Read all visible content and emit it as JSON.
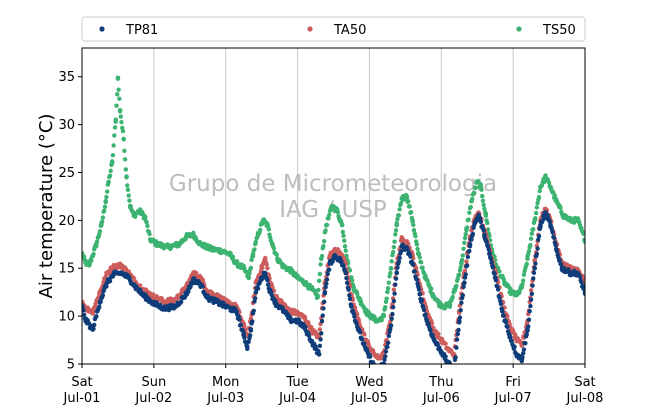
{
  "watermark": {
    "line1": "Grupo de Micrometeorologia",
    "line2": "IAG / USP"
  },
  "colors": {
    "TP81": "#0e3d7a",
    "TA50": "#cd5c5c",
    "TS50": "#3cb371",
    "grid": "#c8c8c8"
  },
  "chart_data": {
    "type": "scatter",
    "title": "",
    "ylabel": "Air temperature (°C)",
    "xlabel": "",
    "ylim": [
      5,
      38
    ],
    "yticks": [
      5,
      10,
      15,
      20,
      25,
      30,
      35
    ],
    "xlim_days": [
      0,
      7
    ],
    "xticks": [
      {
        "day": 0,
        "top": "Sat",
        "bottom": "Jul-01"
      },
      {
        "day": 1,
        "top": "Sun",
        "bottom": "Jul-02"
      },
      {
        "day": 2,
        "top": "Mon",
        "bottom": "Jul-03"
      },
      {
        "day": 3,
        "top": "Tue",
        "bottom": "Jul-04"
      },
      {
        "day": 4,
        "top": "Wed",
        "bottom": "Jul-05"
      },
      {
        "day": 5,
        "top": "Thu",
        "bottom": "Jul-06"
      },
      {
        "day": 6,
        "top": "Fri",
        "bottom": "Jul-07"
      },
      {
        "day": 7,
        "top": "Sat",
        "bottom": "Jul-08"
      }
    ],
    "grid": "vertical",
    "legend": "top",
    "series": [
      {
        "name": "TP81",
        "points": [
          [
            0.0,
            11.0
          ],
          [
            0.05,
            9.6
          ],
          [
            0.15,
            8.6
          ],
          [
            0.25,
            11.5
          ],
          [
            0.35,
            13.5
          ],
          [
            0.45,
            14.4
          ],
          [
            0.55,
            14.5
          ],
          [
            0.65,
            14.0
          ],
          [
            0.75,
            13.0
          ],
          [
            0.85,
            12.2
          ],
          [
            1.0,
            11.3
          ],
          [
            1.15,
            10.8
          ],
          [
            1.3,
            11.0
          ],
          [
            1.45,
            12.3
          ],
          [
            1.55,
            13.8
          ],
          [
            1.65,
            13.3
          ],
          [
            1.75,
            11.9
          ],
          [
            1.9,
            11.4
          ],
          [
            2.0,
            11.0
          ],
          [
            2.15,
            10.5
          ],
          [
            2.25,
            8.0
          ],
          [
            2.3,
            6.8
          ],
          [
            2.35,
            8.5
          ],
          [
            2.42,
            12.5
          ],
          [
            2.5,
            14.0
          ],
          [
            2.55,
            14.5
          ],
          [
            2.62,
            12.5
          ],
          [
            2.7,
            11.3
          ],
          [
            2.8,
            10.6
          ],
          [
            2.9,
            9.6
          ],
          [
            3.0,
            9.5
          ],
          [
            3.1,
            8.8
          ],
          [
            3.2,
            7.3
          ],
          [
            3.3,
            6.0
          ],
          [
            3.38,
            12.5
          ],
          [
            3.45,
            15.5
          ],
          [
            3.52,
            16.3
          ],
          [
            3.6,
            15.8
          ],
          [
            3.67,
            14.5
          ],
          [
            3.75,
            11.0
          ],
          [
            3.85,
            8.5
          ],
          [
            3.95,
            6.5
          ],
          [
            4.05,
            5.0
          ],
          [
            4.12,
            4.5
          ],
          [
            4.2,
            5.0
          ],
          [
            4.3,
            9.0
          ],
          [
            4.38,
            14.5
          ],
          [
            4.45,
            17.3
          ],
          [
            4.52,
            17.0
          ],
          [
            4.6,
            15.5
          ],
          [
            4.7,
            12.3
          ],
          [
            4.8,
            9.5
          ],
          [
            4.9,
            7.5
          ],
          [
            5.0,
            6.3
          ],
          [
            5.1,
            5.0
          ],
          [
            5.18,
            4.5
          ],
          [
            5.25,
            9.5
          ],
          [
            5.32,
            13.5
          ],
          [
            5.4,
            17.5
          ],
          [
            5.47,
            19.8
          ],
          [
            5.52,
            20.5
          ],
          [
            5.6,
            18.5
          ],
          [
            5.67,
            16.5
          ],
          [
            5.75,
            14.0
          ],
          [
            5.85,
            10.5
          ],
          [
            5.95,
            8.0
          ],
          [
            6.05,
            6.0
          ],
          [
            6.12,
            5.5
          ],
          [
            6.2,
            8.5
          ],
          [
            6.3,
            15.0
          ],
          [
            6.38,
            19.5
          ],
          [
            6.45,
            20.8
          ],
          [
            6.52,
            19.5
          ],
          [
            6.6,
            17.0
          ],
          [
            6.68,
            15.0
          ],
          [
            6.8,
            14.5
          ],
          [
            6.9,
            14.5
          ],
          [
            7.0,
            12.5
          ]
        ]
      },
      {
        "name": "TA50",
        "points": [
          [
            0.0,
            11.5
          ],
          [
            0.05,
            10.8
          ],
          [
            0.15,
            10.5
          ],
          [
            0.25,
            12.5
          ],
          [
            0.35,
            14.5
          ],
          [
            0.45,
            15.2
          ],
          [
            0.55,
            15.3
          ],
          [
            0.65,
            14.5
          ],
          [
            0.75,
            13.5
          ],
          [
            0.85,
            12.8
          ],
          [
            1.0,
            12.0
          ],
          [
            1.15,
            11.5
          ],
          [
            1.3,
            11.7
          ],
          [
            1.45,
            13.0
          ],
          [
            1.55,
            14.5
          ],
          [
            1.65,
            14.0
          ],
          [
            1.75,
            12.6
          ],
          [
            1.9,
            12.0
          ],
          [
            2.0,
            11.5
          ],
          [
            2.15,
            11.0
          ],
          [
            2.25,
            9.0
          ],
          [
            2.3,
            8.0
          ],
          [
            2.35,
            9.5
          ],
          [
            2.42,
            13.5
          ],
          [
            2.5,
            15.0
          ],
          [
            2.55,
            16.0
          ],
          [
            2.62,
            13.5
          ],
          [
            2.7,
            12.0
          ],
          [
            2.8,
            11.2
          ],
          [
            2.9,
            10.5
          ],
          [
            3.0,
            10.3
          ],
          [
            3.1,
            9.8
          ],
          [
            3.2,
            8.5
          ],
          [
            3.3,
            7.8
          ],
          [
            3.38,
            13.5
          ],
          [
            3.45,
            16.3
          ],
          [
            3.52,
            17.0
          ],
          [
            3.6,
            16.5
          ],
          [
            3.67,
            15.5
          ],
          [
            3.75,
            12.0
          ],
          [
            3.85,
            9.5
          ],
          [
            3.95,
            7.5
          ],
          [
            4.05,
            6.2
          ],
          [
            4.12,
            5.6
          ],
          [
            4.2,
            6.0
          ],
          [
            4.3,
            10.0
          ],
          [
            4.38,
            15.5
          ],
          [
            4.45,
            18.0
          ],
          [
            4.52,
            17.8
          ],
          [
            4.6,
            16.3
          ],
          [
            4.7,
            13.3
          ],
          [
            4.8,
            10.5
          ],
          [
            4.9,
            8.5
          ],
          [
            5.0,
            7.5
          ],
          [
            5.1,
            6.5
          ],
          [
            5.18,
            6.0
          ],
          [
            5.25,
            10.5
          ],
          [
            5.32,
            14.5
          ],
          [
            5.4,
            18.3
          ],
          [
            5.47,
            20.2
          ],
          [
            5.52,
            20.8
          ],
          [
            5.6,
            19.0
          ],
          [
            5.67,
            17.0
          ],
          [
            5.75,
            14.8
          ],
          [
            5.85,
            11.5
          ],
          [
            5.95,
            9.0
          ],
          [
            6.05,
            7.5
          ],
          [
            6.12,
            7.0
          ],
          [
            6.2,
            9.5
          ],
          [
            6.3,
            15.8
          ],
          [
            6.38,
            20.0
          ],
          [
            6.45,
            21.2
          ],
          [
            6.52,
            20.0
          ],
          [
            6.6,
            17.5
          ],
          [
            6.68,
            15.5
          ],
          [
            6.8,
            15.0
          ],
          [
            6.9,
            14.8
          ],
          [
            7.0,
            13.5
          ]
        ]
      },
      {
        "name": "TS50",
        "points": [
          [
            0.0,
            16.5
          ],
          [
            0.05,
            15.6
          ],
          [
            0.1,
            15.3
          ],
          [
            0.2,
            17.5
          ],
          [
            0.27,
            19.5
          ],
          [
            0.33,
            22.0
          ],
          [
            0.37,
            24.0
          ],
          [
            0.42,
            26.0
          ],
          [
            0.47,
            30.5
          ],
          [
            0.5,
            34.8
          ],
          [
            0.53,
            31.5
          ],
          [
            0.58,
            28.5
          ],
          [
            0.62,
            24.5
          ],
          [
            0.67,
            21.5
          ],
          [
            0.72,
            20.5
          ],
          [
            0.8,
            21.0
          ],
          [
            0.88,
            20.3
          ],
          [
            0.95,
            18.0
          ],
          [
            1.05,
            17.5
          ],
          [
            1.2,
            17.2
          ],
          [
            1.35,
            17.5
          ],
          [
            1.45,
            18.3
          ],
          [
            1.55,
            18.5
          ],
          [
            1.65,
            17.5
          ],
          [
            1.8,
            17.0
          ],
          [
            1.95,
            16.8
          ],
          [
            2.05,
            16.5
          ],
          [
            2.15,
            15.5
          ],
          [
            2.25,
            15.0
          ],
          [
            2.32,
            14.0
          ],
          [
            2.38,
            16.5
          ],
          [
            2.45,
            18.5
          ],
          [
            2.52,
            20.0
          ],
          [
            2.58,
            19.5
          ],
          [
            2.65,
            17.5
          ],
          [
            2.72,
            16.0
          ],
          [
            2.8,
            15.2
          ],
          [
            2.9,
            14.8
          ],
          [
            3.0,
            14.0
          ],
          [
            3.1,
            13.5
          ],
          [
            3.2,
            12.8
          ],
          [
            3.28,
            12.0
          ],
          [
            3.33,
            16.0
          ],
          [
            3.4,
            19.5
          ],
          [
            3.48,
            21.5
          ],
          [
            3.55,
            21.0
          ],
          [
            3.62,
            19.5
          ],
          [
            3.7,
            15.5
          ],
          [
            3.78,
            13.0
          ],
          [
            3.88,
            11.5
          ],
          [
            3.97,
            10.3
          ],
          [
            4.05,
            9.8
          ],
          [
            4.12,
            9.5
          ],
          [
            4.2,
            10.0
          ],
          [
            4.3,
            15.0
          ],
          [
            4.38,
            19.5
          ],
          [
            4.45,
            22.3
          ],
          [
            4.52,
            22.5
          ],
          [
            4.6,
            20.0
          ],
          [
            4.68,
            16.5
          ],
          [
            4.78,
            14.0
          ],
          [
            4.88,
            12.3
          ],
          [
            4.97,
            11.3
          ],
          [
            5.05,
            11.0
          ],
          [
            5.12,
            11.2
          ],
          [
            5.2,
            13.0
          ],
          [
            5.28,
            15.5
          ],
          [
            5.35,
            19.0
          ],
          [
            5.42,
            22.0
          ],
          [
            5.5,
            24.0
          ],
          [
            5.55,
            23.5
          ],
          [
            5.62,
            20.5
          ],
          [
            5.7,
            17.0
          ],
          [
            5.78,
            15.0
          ],
          [
            5.88,
            13.5
          ],
          [
            5.97,
            12.5
          ],
          [
            6.05,
            12.2
          ],
          [
            6.12,
            13.0
          ],
          [
            6.2,
            16.0
          ],
          [
            6.3,
            20.0
          ],
          [
            6.38,
            23.5
          ],
          [
            6.45,
            24.5
          ],
          [
            6.52,
            23.5
          ],
          [
            6.6,
            22.0
          ],
          [
            6.7,
            20.5
          ],
          [
            6.8,
            20.0
          ],
          [
            6.9,
            20.0
          ],
          [
            7.0,
            18.0
          ]
        ]
      }
    ]
  }
}
